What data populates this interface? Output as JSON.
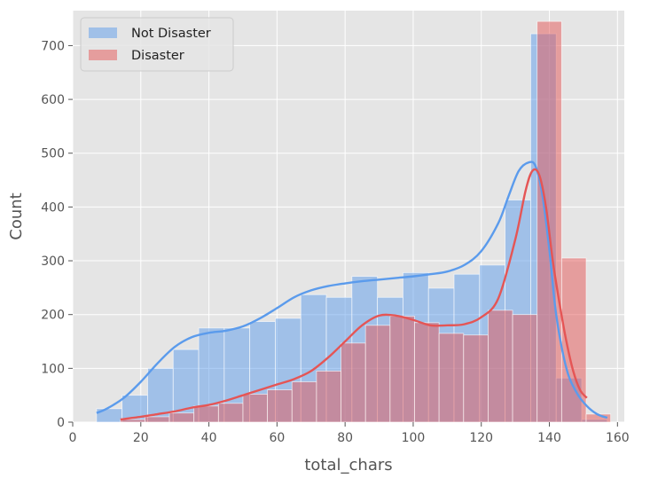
{
  "chart_data": {
    "type": "bar",
    "style": "histogram with KDE overlay",
    "xlabel": "total_chars",
    "ylabel": "Count",
    "xlim": [
      0,
      162
    ],
    "ylim": [
      0,
      765
    ],
    "grid": true,
    "legend_position": "top-left",
    "x_ticks": [
      0,
      20,
      40,
      60,
      80,
      100,
      120,
      140,
      160
    ],
    "y_ticks": [
      0,
      100,
      200,
      300,
      400,
      500,
      600,
      700
    ],
    "series": [
      {
        "name": "Not Disaster",
        "color": "#5b9bec",
        "bins": [
          {
            "x0": 7,
            "x1": 14.5,
            "count": 25
          },
          {
            "x0": 14.5,
            "x1": 22,
            "count": 50
          },
          {
            "x0": 22,
            "x1": 29.5,
            "count": 100
          },
          {
            "x0": 29.5,
            "x1": 37,
            "count": 135
          },
          {
            "x0": 37,
            "x1": 44.5,
            "count": 175
          },
          {
            "x0": 44.5,
            "x1": 52,
            "count": 175
          },
          {
            "x0": 52,
            "x1": 59.5,
            "count": 187
          },
          {
            "x0": 59.5,
            "x1": 67,
            "count": 193
          },
          {
            "x0": 67,
            "x1": 74.5,
            "count": 237
          },
          {
            "x0": 74.5,
            "x1": 82,
            "count": 232
          },
          {
            "x0": 82,
            "x1": 89.5,
            "count": 271
          },
          {
            "x0": 89.5,
            "x1": 97,
            "count": 232
          },
          {
            "x0": 97,
            "x1": 104.5,
            "count": 278
          },
          {
            "x0": 104.5,
            "x1": 112,
            "count": 249
          },
          {
            "x0": 112,
            "x1": 119.5,
            "count": 275
          },
          {
            "x0": 119.5,
            "x1": 127,
            "count": 292
          },
          {
            "x0": 127,
            "x1": 134.5,
            "count": 413
          },
          {
            "x0": 134.5,
            "x1": 142,
            "count": 722
          },
          {
            "x0": 142,
            "x1": 149.5,
            "count": 82
          },
          {
            "x0": 149.5,
            "x1": 157,
            "count": 5
          }
        ],
        "kde_x": [
          7,
          10,
          15,
          20,
          25,
          30,
          35,
          40,
          45,
          50,
          55,
          60,
          65,
          70,
          75,
          80,
          85,
          90,
          95,
          100,
          105,
          110,
          115,
          120,
          125,
          128,
          131,
          134,
          136,
          138,
          140,
          142,
          145,
          148,
          151,
          154,
          157
        ],
        "kde_y": [
          17,
          25,
          45,
          75,
          110,
          140,
          158,
          166,
          170,
          178,
          193,
          212,
          232,
          245,
          253,
          258,
          262,
          265,
          268,
          271,
          275,
          280,
          292,
          318,
          370,
          420,
          467,
          483,
          475,
          420,
          320,
          200,
          100,
          55,
          30,
          15,
          8
        ]
      },
      {
        "name": "Disaster",
        "color": "#e55555",
        "bins": [
          {
            "x0": 14,
            "x1": 21.2,
            "count": 5
          },
          {
            "x0": 21.2,
            "x1": 28.4,
            "count": 10
          },
          {
            "x0": 28.4,
            "x1": 35.6,
            "count": 17
          },
          {
            "x0": 35.6,
            "x1": 42.8,
            "count": 30
          },
          {
            "x0": 42.8,
            "x1": 50,
            "count": 35
          },
          {
            "x0": 50,
            "x1": 57.2,
            "count": 52
          },
          {
            "x0": 57.2,
            "x1": 64.4,
            "count": 60
          },
          {
            "x0": 64.4,
            "x1": 71.6,
            "count": 75
          },
          {
            "x0": 71.6,
            "x1": 78.8,
            "count": 95
          },
          {
            "x0": 78.8,
            "x1": 86,
            "count": 147
          },
          {
            "x0": 86,
            "x1": 93.2,
            "count": 180
          },
          {
            "x0": 93.2,
            "x1": 100.4,
            "count": 197
          },
          {
            "x0": 100.4,
            "x1": 107.6,
            "count": 185
          },
          {
            "x0": 107.6,
            "x1": 114.8,
            "count": 165
          },
          {
            "x0": 114.8,
            "x1": 122,
            "count": 162
          },
          {
            "x0": 122,
            "x1": 129.2,
            "count": 208
          },
          {
            "x0": 129.2,
            "x1": 136.4,
            "count": 200
          },
          {
            "x0": 136.4,
            "x1": 143.6,
            "count": 745
          },
          {
            "x0": 143.6,
            "x1": 150.8,
            "count": 305
          },
          {
            "x0": 150.8,
            "x1": 158,
            "count": 15
          }
        ],
        "kde_x": [
          14,
          20,
          25,
          30,
          35,
          40,
          45,
          50,
          55,
          60,
          65,
          70,
          75,
          80,
          85,
          90,
          95,
          100,
          105,
          110,
          115,
          120,
          125,
          130,
          133,
          135,
          137,
          139,
          141,
          143,
          145,
          147,
          149,
          151
        ],
        "kde_y": [
          5,
          10,
          15,
          20,
          27,
          32,
          40,
          50,
          60,
          70,
          80,
          95,
          120,
          150,
          180,
          198,
          198,
          190,
          180,
          180,
          182,
          195,
          230,
          340,
          430,
          467,
          460,
          400,
          300,
          220,
          150,
          95,
          60,
          45
        ]
      }
    ]
  }
}
